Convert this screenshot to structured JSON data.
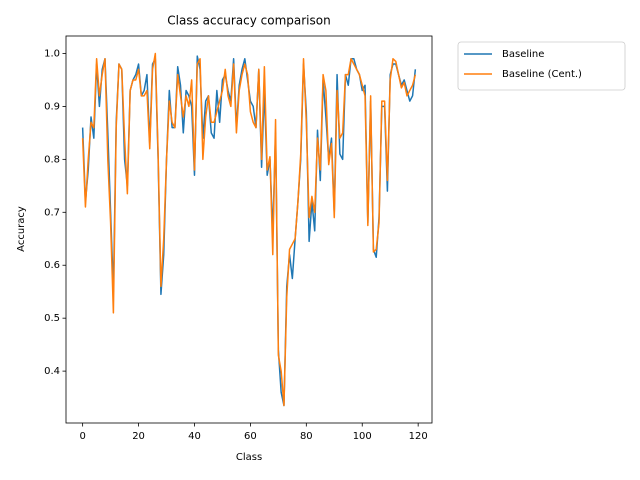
{
  "chart_data": {
    "type": "line",
    "title": "Class accuracy comparison",
    "x_label": "Class",
    "y_label": "Accuracy",
    "x": [
      0,
      1,
      2,
      3,
      4,
      5,
      6,
      7,
      8,
      9,
      10,
      11,
      12,
      13,
      14,
      15,
      16,
      17,
      18,
      19,
      20,
      21,
      22,
      23,
      24,
      25,
      26,
      27,
      28,
      29,
      30,
      31,
      32,
      33,
      34,
      35,
      36,
      37,
      38,
      39,
      40,
      41,
      42,
      43,
      44,
      45,
      46,
      47,
      48,
      49,
      50,
      51,
      52,
      53,
      54,
      55,
      56,
      57,
      58,
      59,
      60,
      61,
      62,
      63,
      64,
      65,
      66,
      67,
      68,
      69,
      70,
      71,
      72,
      73,
      74,
      75,
      76,
      77,
      78,
      79,
      80,
      81,
      82,
      83,
      84,
      85,
      86,
      87,
      88,
      89,
      90,
      91,
      92,
      93,
      94,
      95,
      96,
      97,
      98,
      99,
      100,
      101,
      102,
      103,
      104,
      105,
      106,
      107,
      108,
      109,
      110,
      111,
      112,
      113,
      114,
      115,
      116,
      117,
      118,
      119
    ],
    "series": [
      {
        "name": "Baseline",
        "color": "#1f77b4",
        "values": [
          0.86,
          0.72,
          0.78,
          0.88,
          0.84,
          0.98,
          0.9,
          0.97,
          0.99,
          0.85,
          0.7,
          0.55,
          0.87,
          0.98,
          0.97,
          0.8,
          0.75,
          0.93,
          0.95,
          0.96,
          0.98,
          0.92,
          0.93,
          0.96,
          0.83,
          0.98,
          0.99,
          0.8,
          0.545,
          0.62,
          0.8,
          0.93,
          0.86,
          0.86,
          0.975,
          0.94,
          0.85,
          0.93,
          0.92,
          0.9,
          0.77,
          0.995,
          0.97,
          0.84,
          0.91,
          0.92,
          0.85,
          0.84,
          0.93,
          0.87,
          0.95,
          0.96,
          0.93,
          0.91,
          0.99,
          0.86,
          0.94,
          0.97,
          0.99,
          0.95,
          0.91,
          0.9,
          0.86,
          0.97,
          0.785,
          0.93,
          0.77,
          0.8,
          0.66,
          0.85,
          0.44,
          0.36,
          0.335,
          0.56,
          0.62,
          0.575,
          0.65,
          0.72,
          0.8,
          0.98,
          0.89,
          0.645,
          0.72,
          0.665,
          0.855,
          0.76,
          0.95,
          0.88,
          0.8,
          0.84,
          0.7,
          0.96,
          0.81,
          0.8,
          0.96,
          0.94,
          0.99,
          0.99,
          0.97,
          0.96,
          0.93,
          0.94,
          0.68,
          0.91,
          0.63,
          0.615,
          0.69,
          0.9,
          0.9,
          0.74,
          0.96,
          0.98,
          0.98,
          0.96,
          0.94,
          0.95,
          0.93,
          0.91,
          0.92,
          0.97
        ]
      },
      {
        "name": "Baseline (Cent.)",
        "color": "#ff7f0e",
        "values": [
          0.84,
          0.71,
          0.8,
          0.87,
          0.86,
          0.99,
          0.92,
          0.96,
          0.99,
          0.8,
          0.68,
          0.51,
          0.86,
          0.98,
          0.97,
          0.84,
          0.735,
          0.93,
          0.95,
          0.95,
          0.97,
          0.92,
          0.92,
          0.93,
          0.82,
          0.97,
          1.0,
          0.81,
          0.56,
          0.65,
          0.8,
          0.91,
          0.87,
          0.86,
          0.96,
          0.92,
          0.88,
          0.92,
          0.9,
          0.95,
          0.78,
          0.98,
          0.99,
          0.8,
          0.88,
          0.92,
          0.87,
          0.87,
          0.89,
          0.91,
          0.93,
          0.97,
          0.92,
          0.9,
          0.98,
          0.85,
          0.93,
          0.96,
          0.98,
          0.96,
          0.89,
          0.87,
          0.86,
          0.97,
          0.8,
          0.975,
          0.78,
          0.805,
          0.62,
          0.875,
          0.43,
          0.4,
          0.335,
          0.54,
          0.63,
          0.64,
          0.65,
          0.72,
          0.81,
          0.99,
          0.87,
          0.69,
          0.73,
          0.7,
          0.84,
          0.78,
          0.96,
          0.93,
          0.79,
          0.83,
          0.69,
          0.93,
          0.84,
          0.85,
          0.96,
          0.96,
          0.99,
          0.98,
          0.97,
          0.96,
          0.94,
          0.92,
          0.675,
          0.92,
          0.625,
          0.63,
          0.68,
          0.91,
          0.91,
          0.76,
          0.95,
          0.99,
          0.985,
          0.96,
          0.935,
          0.945,
          0.92,
          0.93,
          0.94,
          0.96
        ]
      }
    ],
    "xlim": [
      -5.95,
      124.95
    ],
    "xticks": [
      0,
      20,
      40,
      60,
      80,
      100,
      120
    ],
    "ylim": [
      0.302,
      1.033
    ],
    "yticks": [
      0.4,
      0.5,
      0.6,
      0.7,
      0.8,
      0.9,
      {
        "value": 1,
        "label": "1.0"
      }
    ],
    "legend": "outside upper right"
  }
}
